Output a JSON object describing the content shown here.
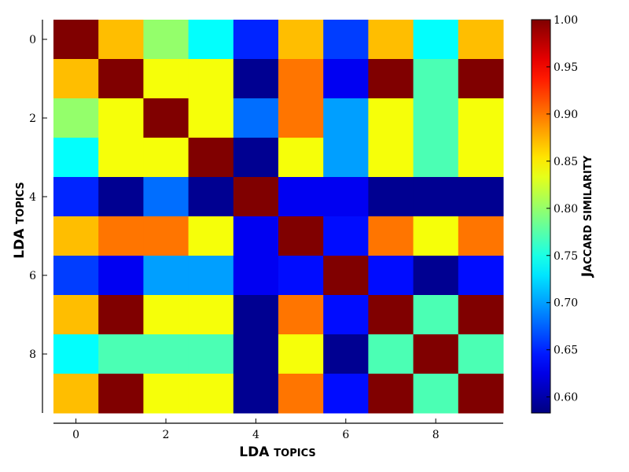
{
  "chart_data": {
    "type": "heatmap",
    "xlabel": {
      "main": "LDA",
      "rest": "TOPICS"
    },
    "ylabel": {
      "main": "LDA",
      "rest": "TOPICS"
    },
    "colorbar_label": {
      "first": "J",
      "rest": "ACCARD SIMILARITY"
    },
    "x_ticks": [
      0,
      2,
      4,
      6,
      8
    ],
    "y_ticks": [
      0,
      2,
      4,
      6,
      8
    ],
    "colorbar_ticks": [
      "0.60",
      "0.65",
      "0.70",
      "0.75",
      "0.80",
      "0.85",
      "0.90",
      "0.95",
      "1.00"
    ],
    "colormap": "jet",
    "vmin": 0.583,
    "vmax": 1.0,
    "rows": [
      [
        1.0,
        0.87,
        0.8,
        0.74,
        0.65,
        0.87,
        0.66,
        0.87,
        0.74,
        0.87
      ],
      [
        0.87,
        1.0,
        0.84,
        0.84,
        0.59,
        0.9,
        0.63,
        1.0,
        0.77,
        1.0
      ],
      [
        0.8,
        0.84,
        1.0,
        0.84,
        0.68,
        0.9,
        0.7,
        0.84,
        0.77,
        0.84
      ],
      [
        0.74,
        0.84,
        0.84,
        1.0,
        0.59,
        0.84,
        0.7,
        0.84,
        0.77,
        0.84
      ],
      [
        0.65,
        0.59,
        0.68,
        0.59,
        1.0,
        0.63,
        0.63,
        0.59,
        0.59,
        0.59
      ],
      [
        0.87,
        0.9,
        0.9,
        0.84,
        0.63,
        1.0,
        0.64,
        0.9,
        0.84,
        0.9
      ],
      [
        0.66,
        0.63,
        0.7,
        0.7,
        0.63,
        0.64,
        1.0,
        0.64,
        0.59,
        0.64
      ],
      [
        0.87,
        1.0,
        0.84,
        0.84,
        0.59,
        0.9,
        0.64,
        1.0,
        0.77,
        1.0
      ],
      [
        0.74,
        0.77,
        0.77,
        0.77,
        0.59,
        0.84,
        0.59,
        0.77,
        1.0,
        0.77
      ],
      [
        0.87,
        1.0,
        0.84,
        0.84,
        0.59,
        0.9,
        0.64,
        1.0,
        0.77,
        1.0
      ]
    ]
  }
}
